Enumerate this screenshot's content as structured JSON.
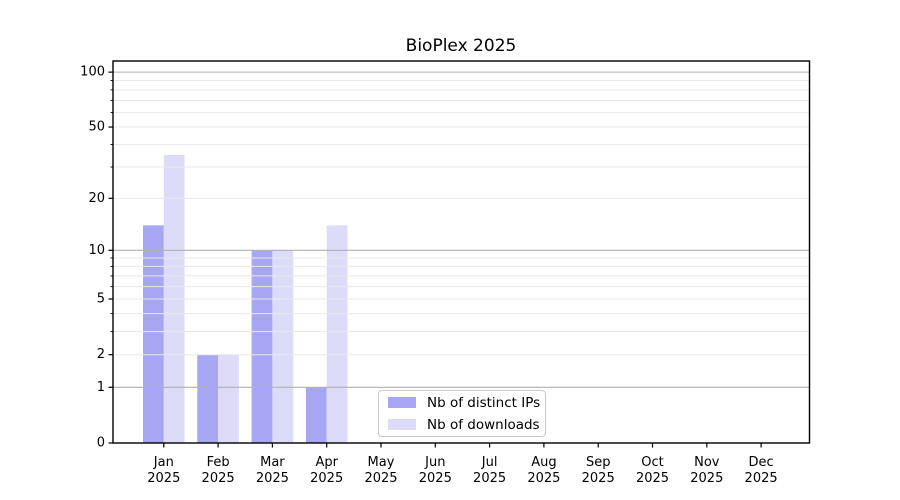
{
  "figure": {
    "title": "BioPlex 2025",
    "background": "#ffffff"
  },
  "chart_data": {
    "type": "bar",
    "title": "BioPlex 2025",
    "categories": [
      "Jan",
      "Feb",
      "Mar",
      "Apr",
      "May",
      "Jun",
      "Jul",
      "Aug",
      "Sep",
      "Oct",
      "Nov",
      "Dec"
    ],
    "x_year_label": "2025",
    "series": [
      {
        "name": "Nb of distinct IPs",
        "color": "#a6a6f3",
        "values": [
          14,
          2,
          10,
          1,
          0,
          0,
          0,
          0,
          0,
          0,
          0,
          0
        ]
      },
      {
        "name": "Nb of downloads",
        "color": "#dcdcf9",
        "values": [
          35,
          2,
          10,
          14,
          0,
          0,
          0,
          0,
          0,
          0,
          0,
          0
        ]
      }
    ],
    "xlabel": "",
    "ylabel": "",
    "yscale": "log1p",
    "ylim": [
      0,
      115
    ],
    "yticks": [
      0,
      1,
      2,
      5,
      10,
      20,
      50,
      100
    ],
    "gridlines": {
      "major": [
        1,
        10,
        100
      ],
      "minor": [
        2,
        3,
        4,
        5,
        6,
        7,
        8,
        9,
        20,
        30,
        40,
        50,
        60,
        70,
        80,
        90
      ],
      "grid_on": true,
      "grid_above_bars": true
    },
    "colors": {
      "grid_major": "#b0b0b0",
      "grid_minor": "#e8e8e8",
      "axis": "#000000",
      "text": "#000000"
    },
    "legend": {
      "position": "lower center-left",
      "items": [
        "Nb of distinct IPs",
        "Nb of downloads"
      ]
    }
  }
}
